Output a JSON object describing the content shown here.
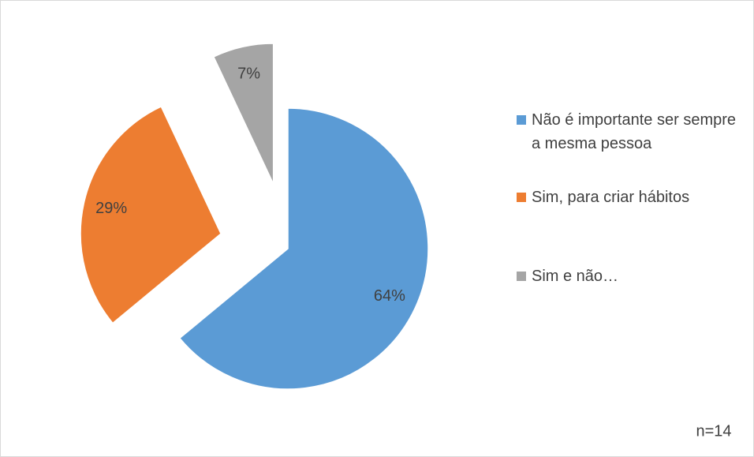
{
  "chart_data": {
    "type": "pie",
    "categories": [
      "Não é importante ser sempre a mesma pessoa",
      "Sim, para criar hábitos",
      "Sim e não…"
    ],
    "values": [
      64,
      29,
      7
    ],
    "value_labels": [
      "64%",
      "29%",
      "7%"
    ],
    "colors": [
      "#5b9bd5",
      "#ed7d31",
      "#a5a5a5"
    ],
    "annotation": "n=14"
  }
}
